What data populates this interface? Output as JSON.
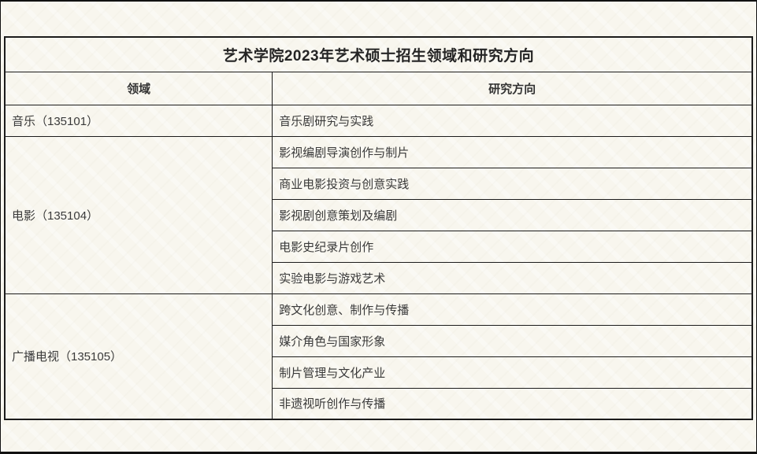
{
  "page": {
    "background_color": "#f8f6ee",
    "frame_color": "#111111",
    "border_color": "#1c1c1c",
    "text_color": "#3a3a3a"
  },
  "table": {
    "title": "艺术学院2023年艺术硕士招生领域和研究方向",
    "columns": [
      "领域",
      "研究方向"
    ],
    "groups": [
      {
        "field": "音乐（135101）",
        "directions": [
          "音乐剧研究与实践"
        ]
      },
      {
        "field": "电影（135104）",
        "directions": [
          "影视编剧导演创作与制片",
          "商业电影投资与创意实践",
          "影视剧创意策划及编剧",
          "电影史纪录片创作",
          "实验电影与游戏艺术"
        ]
      },
      {
        "field": "广播电视（135105）",
        "directions": [
          "跨文化创意、制作与传播",
          "媒介角色与国家形象",
          "制片管理与文化产业",
          "非遗视听创作与传播"
        ]
      }
    ]
  }
}
